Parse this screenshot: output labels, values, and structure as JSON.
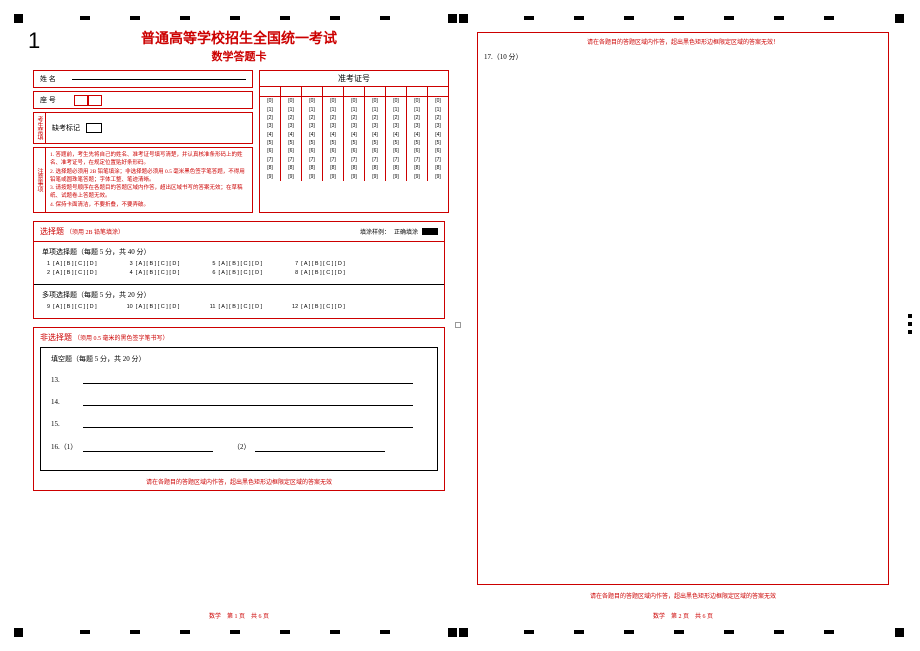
{
  "pageNumber": "1",
  "title1": "普通高等学校招生全国统一考试",
  "title2": "数学答题卡",
  "labels": {
    "name": "姓 名",
    "seat": "座 号"
  },
  "absent": {
    "vlabel": "考生禁填",
    "label": "缺考标记"
  },
  "notice": {
    "vlabel": "注意事项",
    "lines": [
      "1. 答题前，考生先将自己的姓名、准考证号填写清楚，并认真核准条形码上的姓名、准考证号，在规定位置贴好条形码。",
      "2. 选择题必须用 2B 铅笔填涂；非选择题必须用 0.5 毫米黑色签字笔答题，不得用铅笔或圆珠笔答题；字体工整、笔迹清晰。",
      "3. 请按题号顺序在各题目的答题区域内作答，超出区域书写的答案无效；在草稿纸、试题卷上答题无效。",
      "4. 保持卡面清洁，不要折叠，不要弄破。"
    ]
  },
  "examId": {
    "header": "准考证号",
    "cols": 9,
    "digits": [
      "[0]",
      "[1]",
      "[2]",
      "[3]",
      "[4]",
      "[5]",
      "[6]",
      "[7]",
      "[8]",
      "[9]"
    ]
  },
  "mcq": {
    "header": "选择题",
    "headerNote": "（须用 2B 铅笔填涂）",
    "sampleLabel": "填涂样例：",
    "sampleCorrect": "正确填涂",
    "single": {
      "title": "单项选择题（每题 5 分，共 40 分）",
      "opts": "[ A ] [ B ] [ C ] [ D ]",
      "rows": [
        [
          "1",
          "3",
          "5",
          "7"
        ],
        [
          "2",
          "4",
          "6",
          "8"
        ]
      ]
    },
    "multi": {
      "title": "多项选择题（每题 5 分，共 20 分）",
      "opts": "[ A ] [ B ] [ C ] [ D ]",
      "rows": [
        [
          "9",
          "10",
          "11",
          "12"
        ]
      ]
    }
  },
  "frq": {
    "header": "非选择题",
    "headerNote": "（须用 0.5 毫米的黑色签字笔书写）",
    "fillTitle": "填空题（每题 5 分，共 20 分）",
    "items": [
      "13.",
      "14.",
      "15."
    ],
    "item16a": "16.（1）",
    "item16b": "（2）"
  },
  "warning": "请在各题目的答题区域内作答，超出黑色矩形边框限定区域的答案无效",
  "warning2": "请在各题目的答题区域内作答，超出黑色矩形边框限定区域的答案无效！",
  "footer1": "数学　第 1 页　共 6 页",
  "footer2": "数学　第 2 页　共 6 页",
  "q17": "17.（10 分）",
  "colors": {
    "red": "#c00",
    "black": "#000"
  }
}
